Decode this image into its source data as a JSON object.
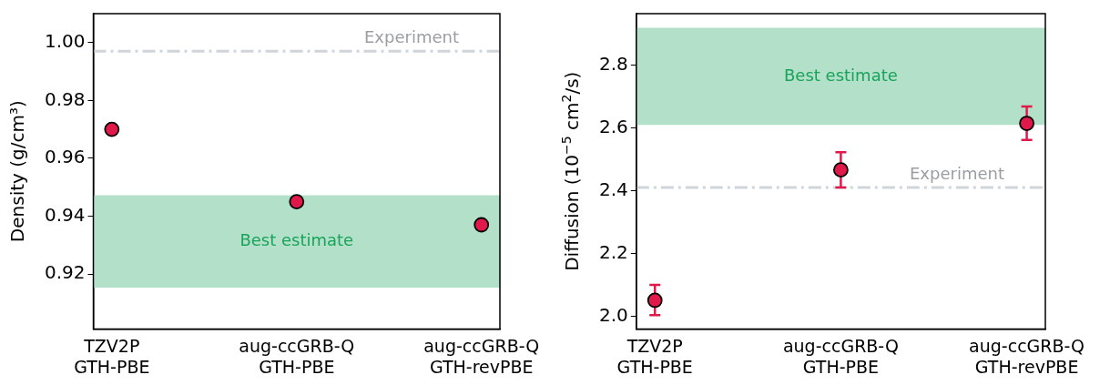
{
  "chart_data": [
    {
      "type": "scatter",
      "ylabel": "Density (g/cm³)",
      "categories": [
        "TZV2P\nGTH-PBE",
        "aug-ccGRB-Q\nGTH-PBE",
        "aug-ccGRB-Q\nGTH-revPBE"
      ],
      "series": [
        {
          "color": "#e0194a",
          "values": [
            0.97,
            0.945,
            0.937
          ]
        }
      ],
      "ylim": [
        0.901,
        1.01
      ],
      "yticks": [
        0.92,
        0.94,
        0.96,
        0.98,
        {
          "value": 1,
          "label": "1.00"
        }
      ],
      "ref_lines": [
        {
          "axis": "y",
          "value": 0.997,
          "label": "Experiment",
          "color": "#d0d5da",
          "line_style": "dashdot"
        }
      ],
      "bands": [
        {
          "axis": "y",
          "from": 0.9153,
          "to": 0.9472,
          "label": "Best estimate",
          "color": "#b3e0c9"
        }
      ],
      "grid": false,
      "legend": false,
      "marker": "circle"
    },
    {
      "type": "scatter",
      "ylabel": "Diffusion (10$^{−5}$ cm$^{2}$/s)",
      "categories": [
        "TZV2P\nGTH-PBE",
        "aug-ccGRB-Q\nGTH-PBE",
        "aug-ccGRB-Q\nGTH-revPBE"
      ],
      "series": [
        {
          "color": "#e0194a",
          "values": [
            2.052,
            2.467,
            2.615
          ],
          "errors": [
            [
              2.005,
              2.101
            ],
            [
              2.411,
              2.523
            ],
            [
              2.562,
              2.669
            ]
          ]
        }
      ],
      "ylim": [
        1.961,
        2.964
      ],
      "yticks": [
        {
          "value": 2,
          "label": "2.0"
        },
        2.2,
        2.4,
        2.6,
        2.8
      ],
      "ref_lines": [
        {
          "axis": "y",
          "value": 2.411,
          "label": "Experiment",
          "color": "#d0d5da",
          "line_style": "dashdot"
        }
      ],
      "bands": [
        {
          "axis": "y",
          "from": 2.61,
          "to": 2.919,
          "label": "Best estimate",
          "color": "#b3e0c9"
        }
      ],
      "grid": false,
      "legend": false,
      "marker": "circle"
    }
  ]
}
